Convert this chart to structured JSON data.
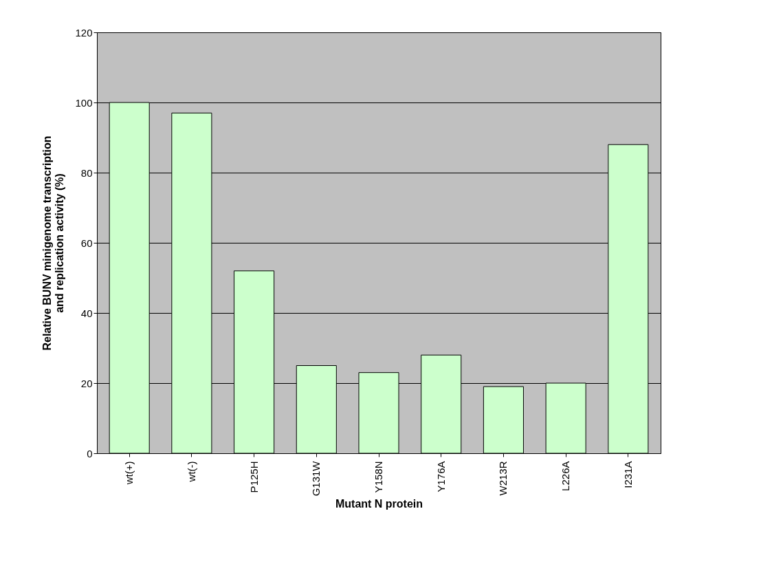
{
  "chart_data": {
    "type": "bar",
    "xlabel": "Mutant N protein",
    "ylabel": "Relative BUNV minigenome transcription and replication activity (%)",
    "categories": [
      "wt(+)",
      "wt(-)",
      "P125H",
      "G131W",
      "Y158N",
      "Y176A",
      "W213R",
      "L226A",
      "I231A"
    ],
    "values": [
      100,
      97,
      52,
      25,
      23,
      28,
      19,
      20,
      88
    ],
    "color": "#ccffcc",
    "ylim": [
      0,
      120
    ],
    "yticks": [
      0,
      20,
      40,
      60,
      80,
      100,
      120
    ],
    "grid": "y"
  }
}
